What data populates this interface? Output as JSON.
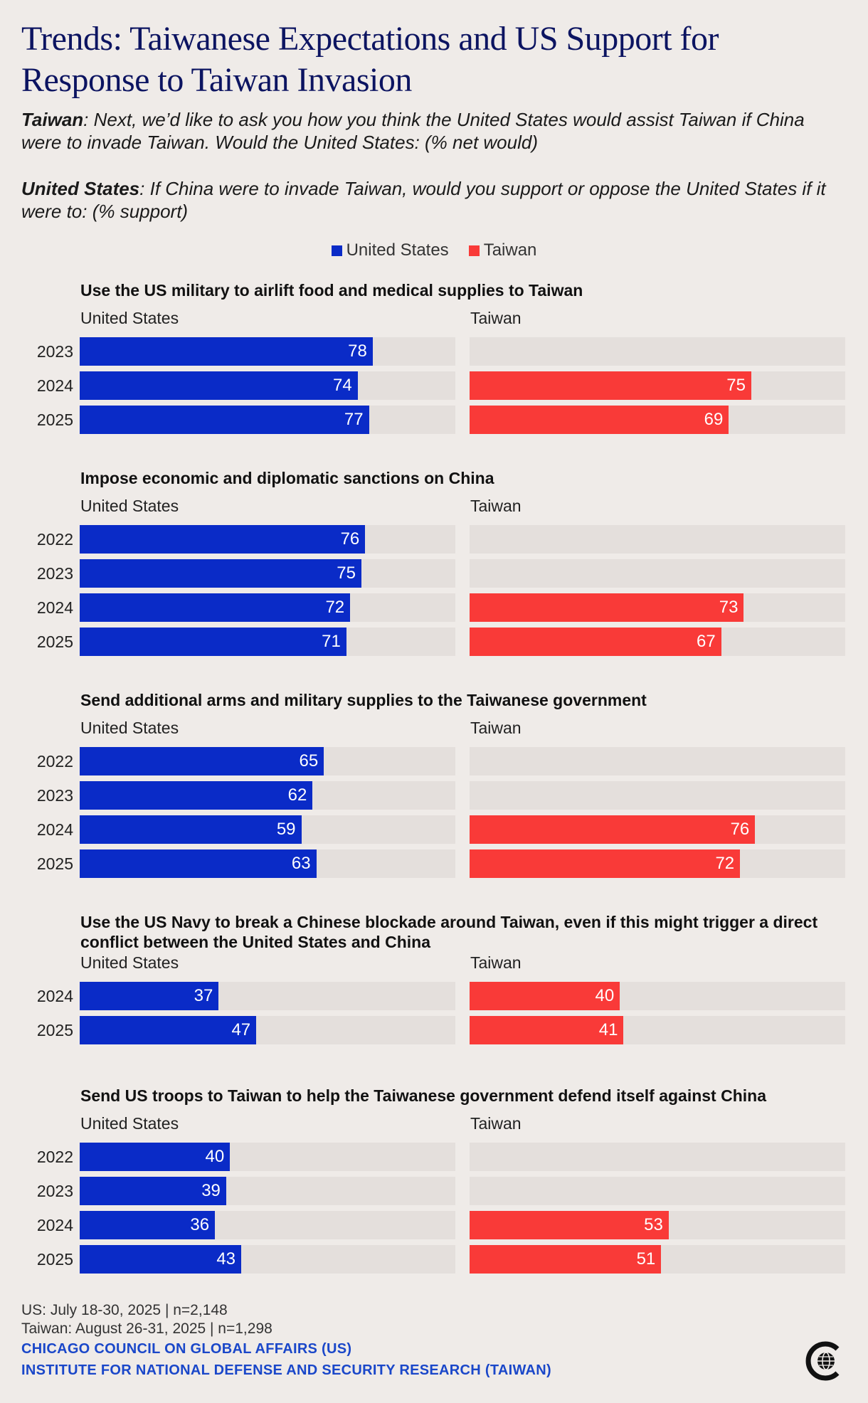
{
  "title": "Trends: Taiwanese Expectations and US Support for Response to Taiwan Invasion",
  "question_taiwan": {
    "label": "Taiwan",
    "text": ": Next, we’d like to ask you how you think the United States would assist Taiwan if China were to invade Taiwan. Would the United States: (% net would)"
  },
  "question_us": {
    "label": "United States",
    "text": ": If China were to invade Taiwan, would you support or oppose the United States if it were to: (% support)"
  },
  "legend": [
    {
      "label": "United States",
      "color": "#0a2bc7"
    },
    {
      "label": "Taiwan",
      "color": "#f93a38"
    }
  ],
  "column_labels": {
    "us": "United States",
    "tw": "Taiwan"
  },
  "chart_data": {
    "type": "bar",
    "orientation": "horizontal",
    "xlim": [
      0,
      100
    ],
    "series_names": [
      "United States",
      "Taiwan"
    ],
    "colors": {
      "us": "#0a2bc7",
      "tw": "#f93a38"
    },
    "panels": [
      {
        "title": "Use the US military to airlift food and medical supplies to Taiwan",
        "rows": [
          {
            "year": "2023",
            "us": 78,
            "tw": null
          },
          {
            "year": "2024",
            "us": 74,
            "tw": 75
          },
          {
            "year": "2025",
            "us": 77,
            "tw": 69
          }
        ]
      },
      {
        "title": "Impose economic and diplomatic sanctions on China",
        "rows": [
          {
            "year": "2022",
            "us": 76,
            "tw": null
          },
          {
            "year": "2023",
            "us": 75,
            "tw": null
          },
          {
            "year": "2024",
            "us": 72,
            "tw": 73
          },
          {
            "year": "2025",
            "us": 71,
            "tw": 67
          }
        ]
      },
      {
        "title": "Send additional arms and military supplies to the Taiwanese government",
        "rows": [
          {
            "year": "2022",
            "us": 65,
            "tw": null
          },
          {
            "year": "2023",
            "us": 62,
            "tw": null
          },
          {
            "year": "2024",
            "us": 59,
            "tw": 76
          },
          {
            "year": "2025",
            "us": 63,
            "tw": 72
          }
        ]
      },
      {
        "title": "Use the US Navy to break a Chinese blockade around Taiwan, even if this might trigger a direct conflict between the United States and China",
        "rows": [
          {
            "year": "2024",
            "us": 37,
            "tw": 40
          },
          {
            "year": "2025",
            "us": 47,
            "tw": 41
          }
        ]
      },
      {
        "title": "Send US troops to Taiwan to help the Taiwanese government defend itself against China",
        "rows": [
          {
            "year": "2022",
            "us": 40,
            "tw": null
          },
          {
            "year": "2023",
            "us": 39,
            "tw": null
          },
          {
            "year": "2024",
            "us": 36,
            "tw": 53
          },
          {
            "year": "2025",
            "us": 43,
            "tw": 51
          }
        ]
      }
    ]
  },
  "footer": {
    "us_fieldwork": "US: July 18-30, 2025 | n=2,148",
    "tw_fieldwork": "Taiwan: August 26-31, 2025 | n=1,298",
    "source1": "CHICAGO COUNCIL ON GLOBAL AFFAIRS (US)",
    "source2": "INSTITUTE FOR NATIONAL DEFENSE AND SECURITY RESEARCH (TAIWAN)"
  },
  "logo": {
    "icon": "chicago-council-logo-icon"
  }
}
